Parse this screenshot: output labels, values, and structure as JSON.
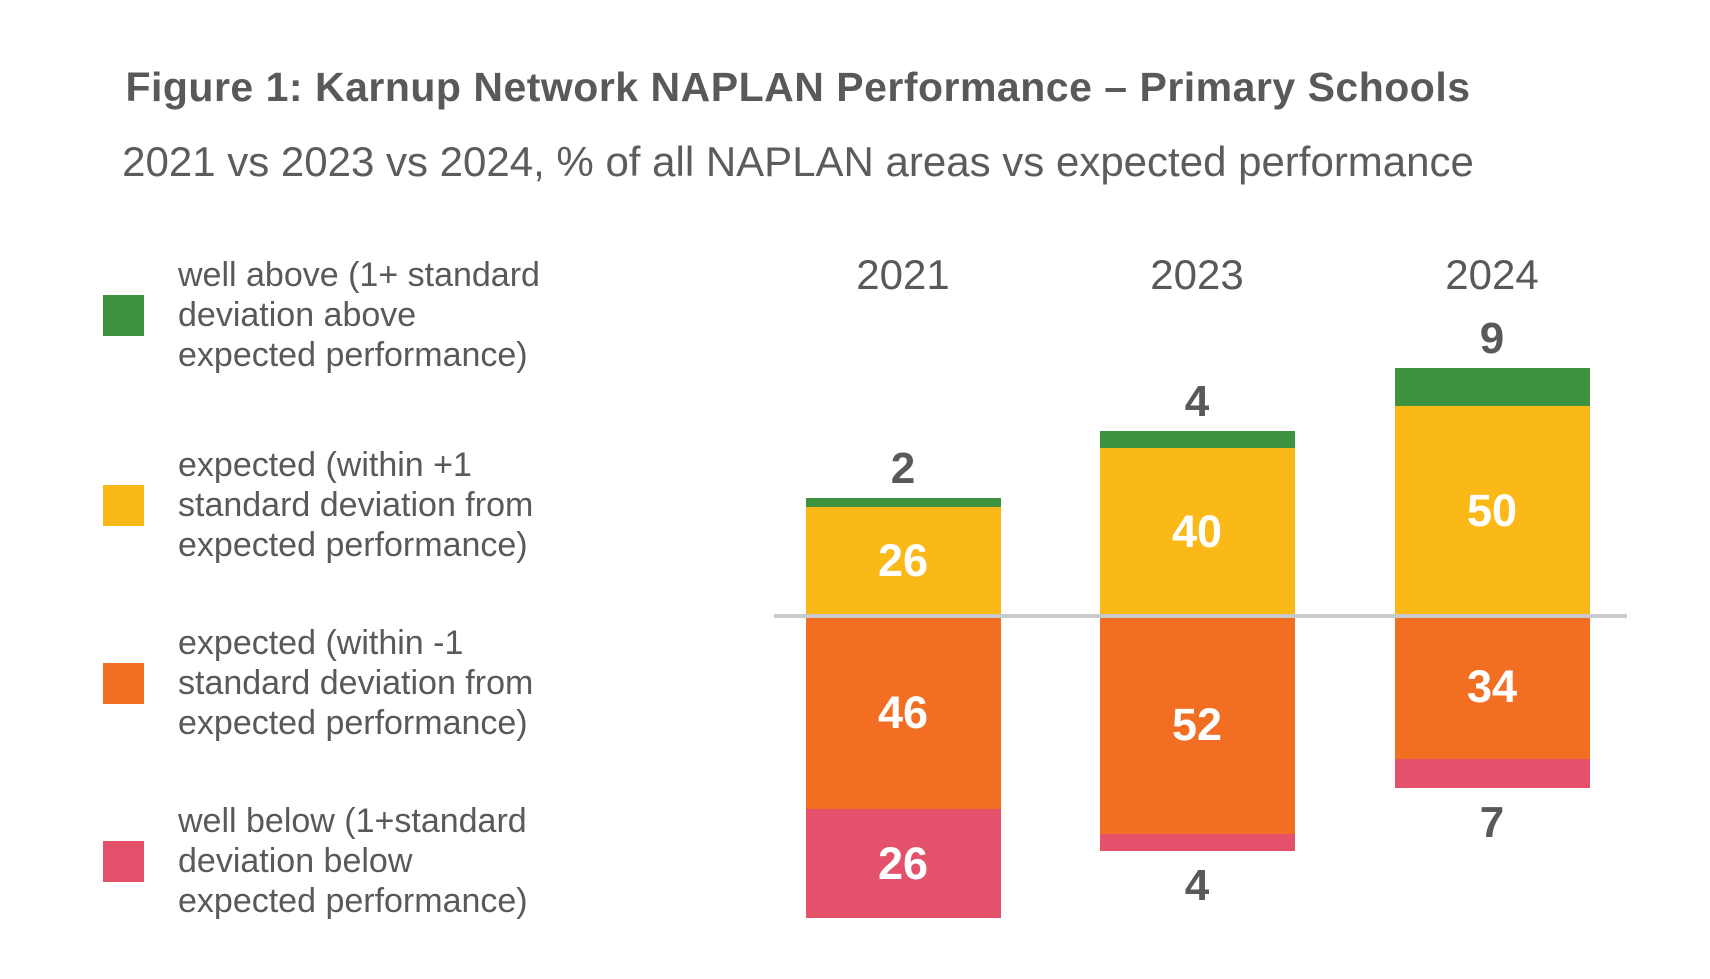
{
  "title": "Figure 1: Karnup Network NAPLAN Performance – Primary Schools",
  "subtitle": "2021 vs 2023 vs 2024, % of all NAPLAN areas vs expected performance",
  "colors": {
    "green": "#3F9240",
    "yellow": "#FBB917",
    "orange": "#F26E23",
    "pink": "#E4516B",
    "text": "#58595B",
    "baseline": "#C9CACB",
    "value_label_inside": "#FFFFFF"
  },
  "legend": {
    "items": [
      {
        "key": "green",
        "label": "well above (1+ standard\ndeviation above\nexpected performance)"
      },
      {
        "key": "yellow",
        "label": "expected (within +1\nstandard deviation from\nexpected performance)"
      },
      {
        "key": "orange",
        "label": "expected (within -1\nstandard deviation from\nexpected performance)"
      },
      {
        "key": "pink",
        "label": "well below (1+standard\ndeviation below\nexpected performance)"
      }
    ]
  },
  "chart_data": {
    "type": "bar",
    "stacked": true,
    "diverging": true,
    "legend_position": "left",
    "categories": [
      "2021",
      "2023",
      "2024"
    ],
    "series": [
      {
        "name": "well above (1+ standard deviation above expected performance)",
        "key": "green",
        "position": "above",
        "values": [
          2,
          4,
          9
        ]
      },
      {
        "name": "expected (within +1 standard deviation from expected performance)",
        "key": "yellow",
        "position": "above",
        "values": [
          26,
          40,
          50
        ]
      },
      {
        "name": "expected (within -1 standard deviation from expected performance)",
        "key": "orange",
        "position": "below",
        "values": [
          46,
          52,
          34
        ]
      },
      {
        "name": "well below (1+standard deviation below expected performance)",
        "key": "pink",
        "position": "below",
        "values": [
          26,
          4,
          7
        ]
      }
    ]
  }
}
